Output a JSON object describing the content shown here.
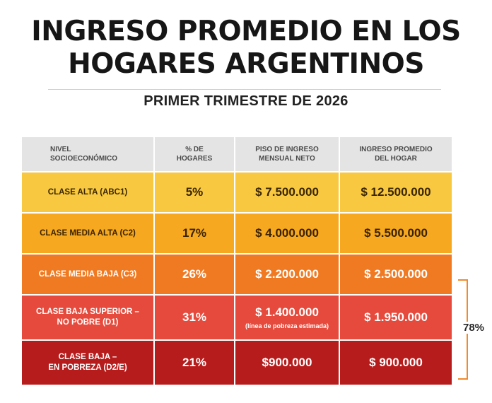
{
  "title": {
    "line1": "INGRESO PROMEDIO EN LOS",
    "line2": "HOGARES ARGENTINOS"
  },
  "subtitle": "PRIMER TRIMESTRE DE 2026",
  "table": {
    "headers": {
      "nivel_line1": "NIVEL",
      "nivel_line2": "SOCIOECONÓMICO",
      "hogares_line1": "% DE",
      "hogares_line2": "HOGARES",
      "piso_line1": "PISO DE INGRESO",
      "piso_line2": "MENSUAL NETO",
      "promedio_line1": "INGRESO PROMEDIO",
      "promedio_line2": "DEL HOGAR"
    },
    "rows": [
      {
        "nivel": "CLASE ALTA (ABC1)",
        "nivel2": "",
        "hogares": "5%",
        "piso": "$ 7.500.000",
        "promedio": "$ 12.500.000",
        "color": "#f8c840"
      },
      {
        "nivel": "CLASE MEDIA ALTA (C2)",
        "nivel2": "",
        "hogares": "17%",
        "piso": "$ 4.000.000",
        "promedio": "$ 5.500.000",
        "color": "#f6a820"
      },
      {
        "nivel": "CLASE MEDIA BAJA (C3)",
        "nivel2": "",
        "hogares": "26%",
        "piso": "$ 2.200.000",
        "promedio": "$ 2.500.000",
        "color": "#f07a22"
      },
      {
        "nivel": "CLASE BAJA SUPERIOR –",
        "nivel2": "NO POBRE (D1)",
        "hogares": "31%",
        "piso": "$ 1.400.000",
        "piso_note": "(línea de pobreza estimada)",
        "promedio": "$ 1.950.000",
        "color": "#e54a3c"
      },
      {
        "nivel": "CLASE BAJA –",
        "nivel2": "EN POBREZA (D2/E)",
        "hogares": "21%",
        "piso": "$900.000",
        "promedio": "$ 900.000",
        "color": "#b71c1c"
      }
    ]
  },
  "bracket": {
    "label": "78%",
    "color": "#f08a2a"
  }
}
